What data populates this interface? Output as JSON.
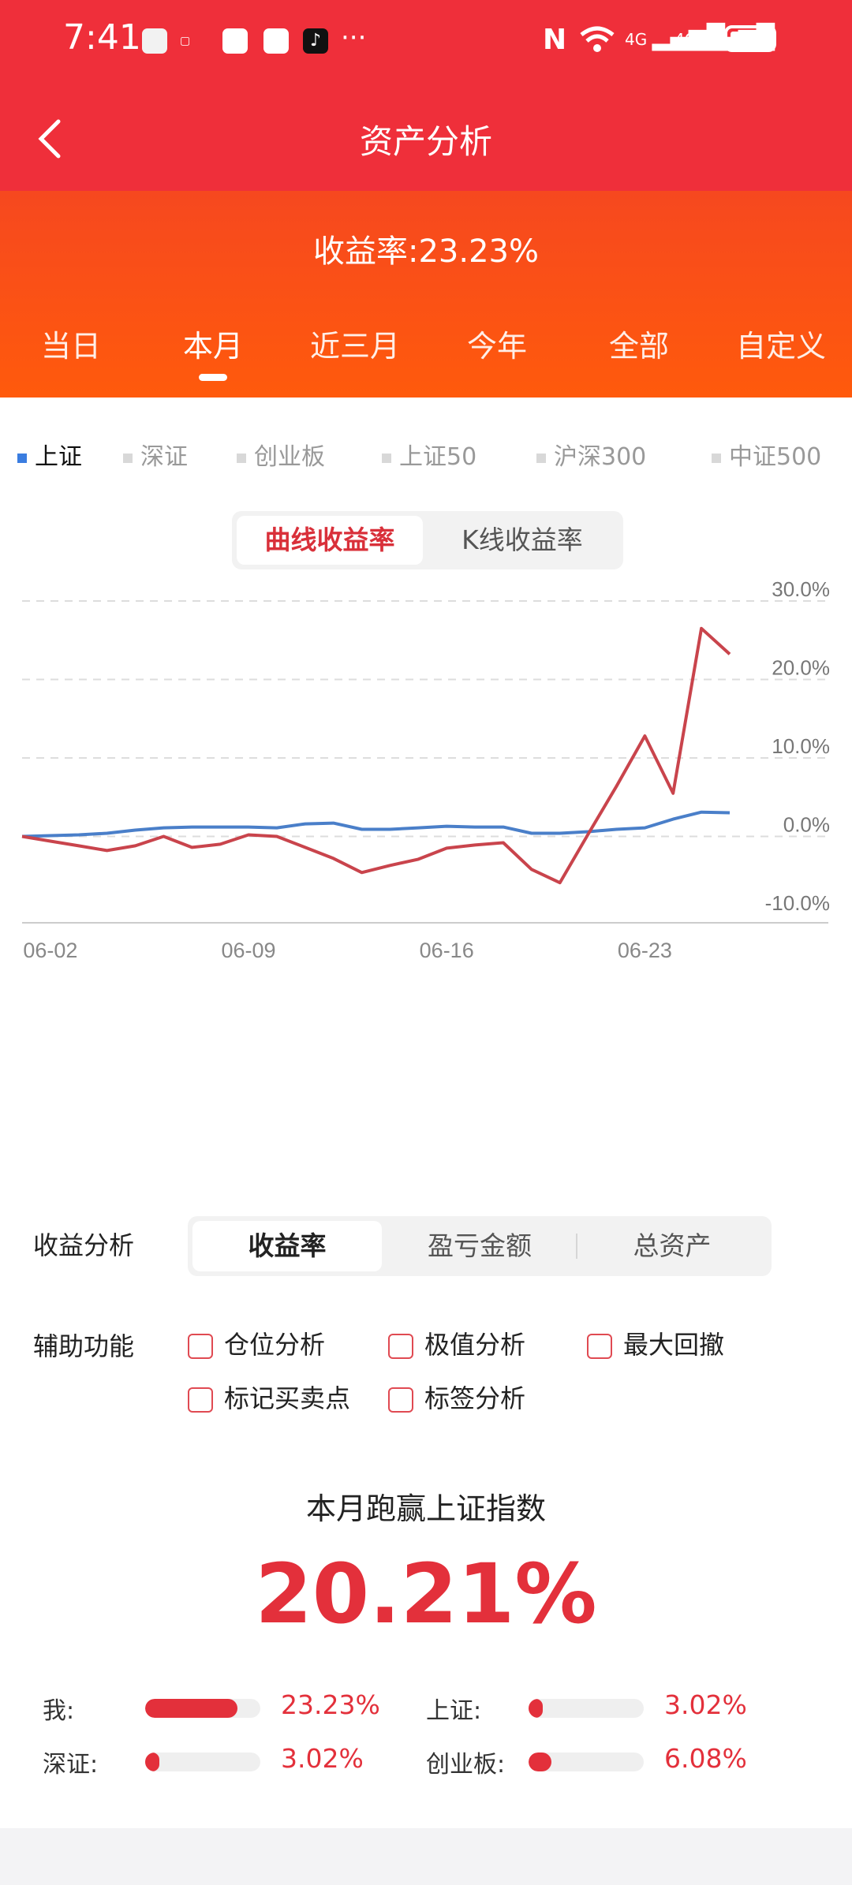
{
  "status_bar": {
    "time": "7:41",
    "app_icons": [
      "red-book-icon",
      "xiaohongshu-icon",
      "red-app-icon",
      "video-app-icon",
      "tiktok-icon"
    ],
    "more": "···",
    "nfc": "N",
    "net1": "4G",
    "net2": "4G"
  },
  "header": {
    "title": "资产分析"
  },
  "summary": {
    "yield_text": "收益率:23.23%"
  },
  "period_tabs": [
    "当日",
    "本月",
    "近三月",
    "今年",
    "全部",
    "自定义"
  ],
  "period_active": "本月",
  "indices": [
    "上证",
    "深证",
    "创业板",
    "上证50",
    "沪深300",
    "中证500"
  ],
  "index_active": "上证",
  "chart_mode": {
    "options": [
      "曲线收益率",
      "K线收益率"
    ],
    "active": "曲线收益率"
  },
  "chart_data": {
    "type": "line",
    "x": [
      "06-01",
      "06-02",
      "06-03",
      "06-04",
      "06-05",
      "06-06",
      "06-07",
      "06-08",
      "06-09",
      "06-10",
      "06-11",
      "06-12",
      "06-13",
      "06-14",
      "06-15",
      "06-16",
      "06-17",
      "06-18",
      "06-19",
      "06-20",
      "06-21",
      "06-22",
      "06-23",
      "06-24",
      "06-25",
      "06-26"
    ],
    "x_ticks": [
      "06-02",
      "06-09",
      "06-16",
      "06-23"
    ],
    "series": [
      {
        "color": "#c9444c",
        "values": [
          0.0,
          -0.6,
          -1.2,
          -1.8,
          -1.2,
          0.0,
          -1.4,
          -1.0,
          0.2,
          0.0,
          -1.4,
          -2.8,
          -4.6,
          -3.7,
          -2.9,
          -1.5,
          -1.1,
          -0.8,
          -4.2,
          -5.9,
          0.3,
          6.4,
          12.8,
          5.5,
          26.5,
          23.23
        ]
      },
      {
        "color": "#4a7fc9",
        "values": [
          0.0,
          0.1,
          0.2,
          0.4,
          0.8,
          1.1,
          1.2,
          1.2,
          1.2,
          1.1,
          1.6,
          1.7,
          0.9,
          0.9,
          1.1,
          1.3,
          1.2,
          1.2,
          0.4,
          0.4,
          0.6,
          0.9,
          1.1,
          2.2,
          3.1,
          3.02
        ]
      }
    ],
    "y_ticks": [
      "30.0%",
      "20.0%",
      "10.0%",
      "0.0%",
      "-10.0%"
    ],
    "ylim": [
      -10,
      30
    ],
    "grid": true
  },
  "analysis": {
    "label": "收益分析",
    "tabs": [
      "收益率",
      "盈亏金额",
      "总资产"
    ],
    "active": "收益率"
  },
  "aux": {
    "label": "辅助功能",
    "options": [
      "仓位分析",
      "极值分析",
      "最大回撤",
      "标记买卖点",
      "标签分析"
    ]
  },
  "beat": {
    "title": "本月跑赢上证指数",
    "value": "20.21%"
  },
  "comparison": [
    {
      "label": "我:",
      "value": "23.23%",
      "fraction": 0.8
    },
    {
      "label": "上证:",
      "value": "3.02%",
      "fraction": 0.1
    },
    {
      "label": "深证:",
      "value": "3.02%",
      "fraction": 0.1
    },
    {
      "label": "创业板:",
      "value": "6.08%",
      "fraction": 0.2
    }
  ],
  "colors": {
    "brand_red": "#ef2f3a",
    "orange": "#ff5a0c",
    "accent": "#e3303b",
    "blue": "#4a7fc9"
  }
}
